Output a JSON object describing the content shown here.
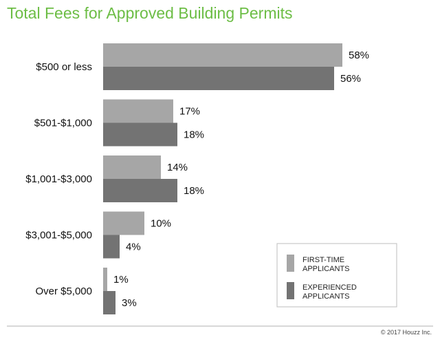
{
  "chart_data": {
    "type": "bar",
    "orientation": "horizontal",
    "title": "Total Fees for Approved Building Permits",
    "categories": [
      "$500 or less",
      "$501-$1,000",
      "$1,001-$3,000",
      "$3,001-$5,000",
      "Over $5,000"
    ],
    "series": [
      {
        "name": "FIRST-TIME APPLICANTS",
        "legend_lines": [
          "FIRST-TIME",
          "APPLICANTS"
        ],
        "color": "#a6a6a6",
        "values": [
          58,
          17,
          14,
          10,
          1
        ],
        "labels": [
          "58%",
          "17%",
          "14%",
          "10%",
          "1%"
        ]
      },
      {
        "name": "EXPERIENCED APPLICANTS",
        "legend_lines": [
          "EXPERIENCED",
          "APPLICANTS"
        ],
        "color": "#737373",
        "values": [
          56,
          18,
          18,
          4,
          3
        ],
        "labels": [
          "56%",
          "18%",
          "18%",
          "4%",
          "3%"
        ]
      }
    ],
    "xlim": [
      0,
      58
    ],
    "grid": false,
    "legend_position": "bottom-right"
  },
  "footer": "© 2017 Houzz Inc."
}
